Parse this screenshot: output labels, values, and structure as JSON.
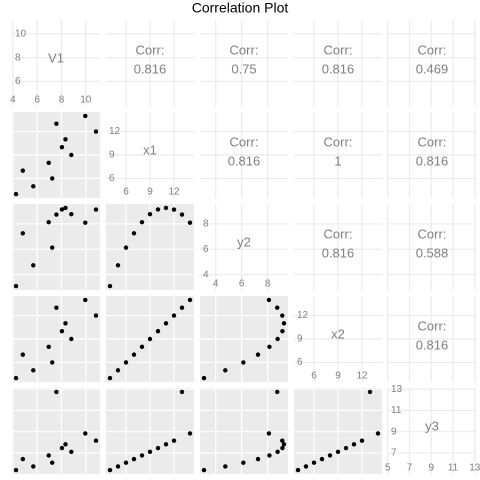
{
  "chart_data": {
    "type": "pairs",
    "title": "Correlation Plot",
    "corr_label": "Corr:",
    "variables": [
      {
        "name": "V1",
        "values": [
          8.04,
          6.95,
          7.58,
          8.81,
          8.33,
          9.96,
          7.24,
          4.26,
          10.84,
          4.82,
          5.68
        ],
        "lim": [
          3.93,
          11.17
        ],
        "xticks": [
          4,
          6,
          8,
          10
        ],
        "yticks": [
          6,
          8,
          10
        ]
      },
      {
        "name": "x1",
        "values": [
          10,
          8,
          13,
          9,
          11,
          14,
          6,
          4,
          12,
          7,
          5
        ],
        "lim": [
          3.5,
          14.5
        ],
        "xticks": [
          6,
          9,
          12
        ],
        "yticks": [
          6,
          9,
          12
        ]
      },
      {
        "name": "y2",
        "values": [
          9.14,
          8.14,
          8.74,
          8.77,
          9.26,
          8.1,
          6.13,
          3.1,
          9.13,
          7.26,
          4.74
        ],
        "lim": [
          2.79,
          9.57
        ],
        "xticks": [
          4,
          6,
          8
        ],
        "yticks": [
          4,
          6,
          8
        ]
      },
      {
        "name": "x2",
        "values": [
          10,
          8,
          13,
          9,
          11,
          14,
          6,
          4,
          12,
          7,
          5
        ],
        "lim": [
          3.5,
          14.5
        ],
        "xticks": [
          6,
          9,
          12
        ],
        "yticks": [
          6,
          9,
          12
        ]
      },
      {
        "name": "y3",
        "values": [
          7.46,
          6.77,
          12.74,
          7.11,
          7.81,
          8.84,
          6.08,
          5.39,
          8.15,
          6.42,
          5.73
        ],
        "lim": [
          5.02,
          13.11
        ],
        "xticks": [
          5,
          7,
          9,
          11,
          13
        ],
        "yticks": [
          7,
          9,
          11,
          13
        ]
      }
    ],
    "correlations": [
      [
        0.816,
        0.75,
        0.816,
        0.469
      ],
      [
        0.816,
        1,
        0.816
      ],
      [
        0.816,
        0.588
      ],
      [
        0.816
      ]
    ],
    "point_color": "#000000"
  }
}
